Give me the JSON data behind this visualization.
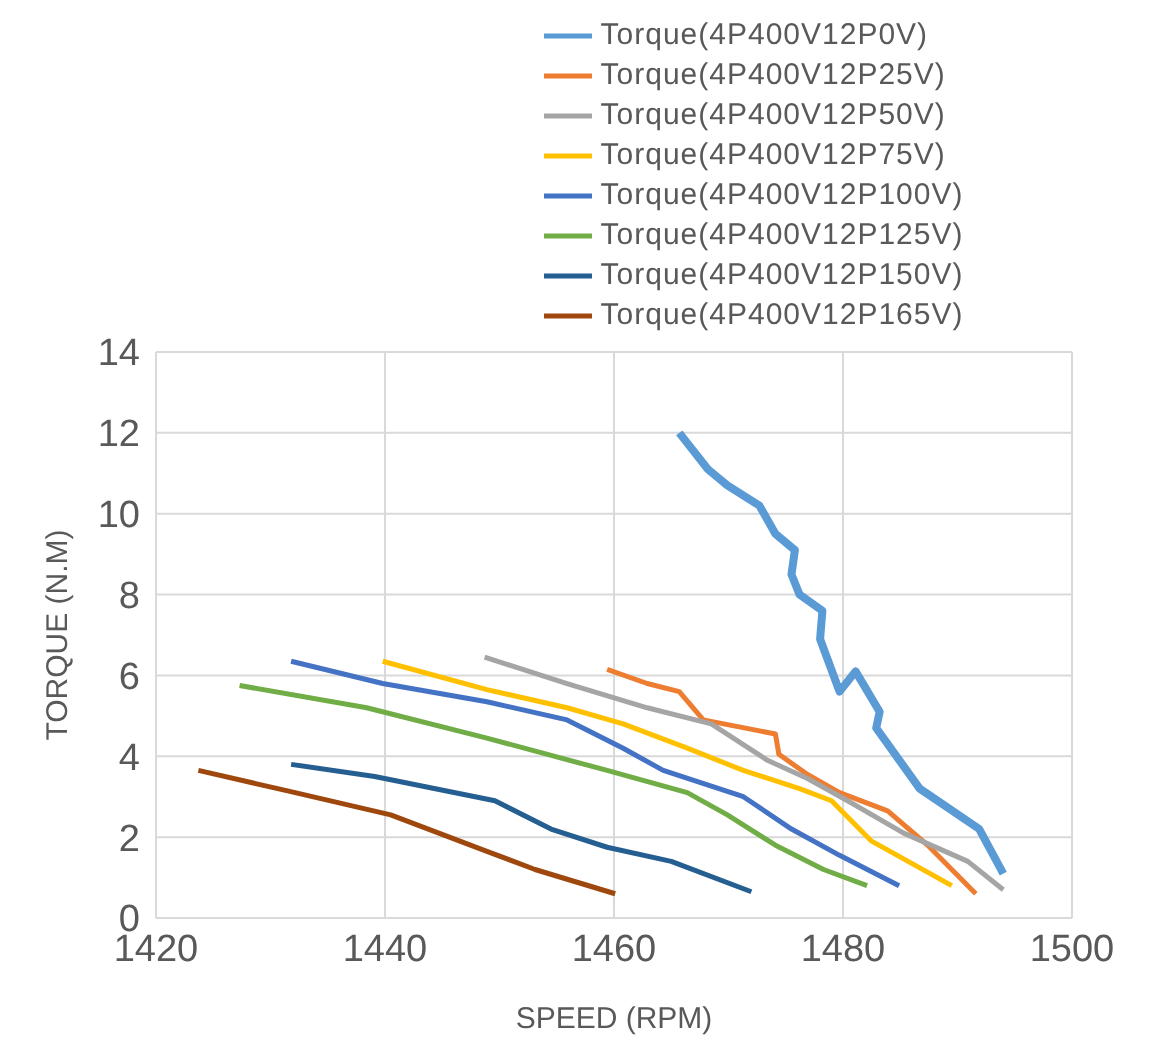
{
  "chart_data": {
    "type": "line",
    "xlabel": "SPEED (RPM)",
    "ylabel": "TORQUE (N.M)",
    "xlim": [
      1420,
      1500
    ],
    "xticks": [
      1420,
      1440,
      1460,
      1480,
      1500
    ],
    "ylim": [
      0,
      14
    ],
    "yticks": [
      0,
      2,
      4,
      6,
      8,
      10,
      12,
      14
    ],
    "grid": true,
    "legend": "top",
    "marker": "none",
    "line_style": "solid",
    "series": [
      {
        "name": "Torque(4P400V12P0V)",
        "color": "#5b9bd5",
        "x": [
          1465.7,
          1468.2,
          1469.9,
          1472.7,
          1474.1,
          1475.8,
          1475.5,
          1476.2,
          1478.2,
          1478.0,
          1479.7,
          1481.1,
          1483.2,
          1482.9,
          1486.7,
          1491.9,
          1494.0
        ],
        "values": [
          12.0,
          11.1,
          10.7,
          10.2,
          9.5,
          9.1,
          8.5,
          8.0,
          7.6,
          6.9,
          5.6,
          6.1,
          5.1,
          4.7,
          3.2,
          2.2,
          1.1
        ]
      },
      {
        "name": "Torque(4P400V12P25V)",
        "color": "#ed7d31",
        "x": [
          1459.4,
          1462.9,
          1465.7,
          1467.8,
          1474.1,
          1474.4,
          1476.9,
          1479.7,
          1483.9,
          1487.4,
          1491.6
        ],
        "values": [
          6.15,
          5.8,
          5.6,
          4.9,
          4.55,
          4.05,
          3.55,
          3.1,
          2.65,
          1.8,
          0.6
        ]
      },
      {
        "name": "Torque(4P400V12P50V)",
        "color": "#a5a5a5",
        "x": [
          1448.7,
          1455.9,
          1462.9,
          1468.5,
          1473.4,
          1476.9,
          1480.4,
          1485.3,
          1490.9,
          1494.0
        ],
        "values": [
          6.45,
          5.8,
          5.2,
          4.8,
          3.9,
          3.45,
          2.9,
          2.1,
          1.4,
          0.7
        ]
      },
      {
        "name": "Torque(4P400V12P75V)",
        "color": "#ffc000",
        "x": [
          1439.8,
          1448.9,
          1455.9,
          1460.8,
          1466.4,
          1471.3,
          1476.2,
          1479.0,
          1482.5,
          1486.0,
          1489.5
        ],
        "values": [
          6.35,
          5.65,
          5.2,
          4.8,
          4.2,
          3.65,
          3.2,
          2.9,
          1.9,
          1.35,
          0.8
        ]
      },
      {
        "name": "Torque(4P400V12P100V)",
        "color": "#4472c4",
        "x": [
          1431.8,
          1439.8,
          1448.9,
          1455.9,
          1460.8,
          1464.3,
          1471.3,
          1475.5,
          1479.7,
          1484.9
        ],
        "values": [
          6.35,
          5.8,
          5.35,
          4.9,
          4.2,
          3.65,
          3.0,
          2.2,
          1.55,
          0.8
        ]
      },
      {
        "name": "Torque(4P400V12P125V)",
        "color": "#70ad47",
        "x": [
          1427.3,
          1438.4,
          1448.9,
          1459.4,
          1466.4,
          1469.9,
          1474.1,
          1478.3,
          1482.1
        ],
        "values": [
          5.75,
          5.2,
          4.45,
          3.65,
          3.1,
          2.55,
          1.8,
          1.2,
          0.8
        ]
      },
      {
        "name": "Torque(4P400V12P150V)",
        "color": "#255e91",
        "x": [
          1431.8,
          1439.1,
          1449.6,
          1454.5,
          1459.4,
          1465.0,
          1472.0
        ],
        "values": [
          3.8,
          3.5,
          2.9,
          2.2,
          1.75,
          1.4,
          0.65
        ]
      },
      {
        "name": "Torque(4P400V12P165V)",
        "color": "#9e480e",
        "x": [
          1423.7,
          1431.4,
          1440.5,
          1448.9,
          1453.1,
          1460.1
        ],
        "values": [
          3.65,
          3.15,
          2.55,
          1.65,
          1.2,
          0.6
        ]
      }
    ]
  }
}
